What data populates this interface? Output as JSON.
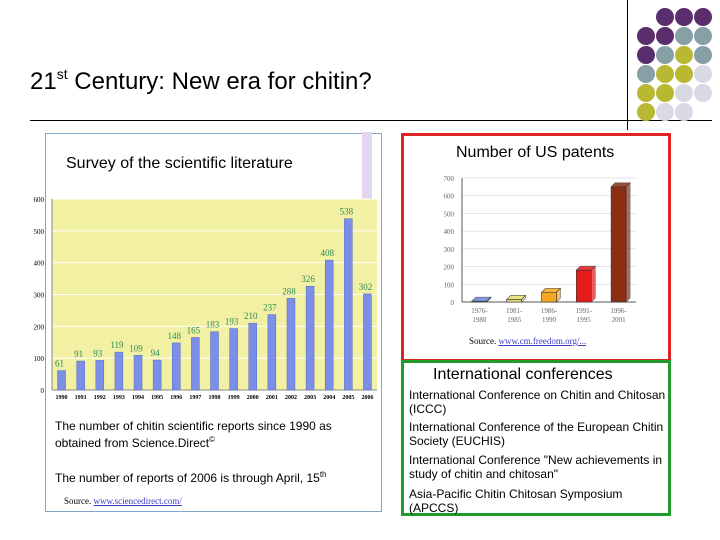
{
  "slide": {
    "title_pre": "21",
    "title_sup": "st",
    "title_post": " Century: New era for chitin?"
  },
  "decor": {
    "dot_colors": [
      "#5a2d6c",
      "#86a0a6",
      "#b8b832",
      "#d9d9e4"
    ]
  },
  "survey": {
    "title": "Survey of the scientific literature",
    "note1_pre": "The number of chitin scientific reports since 1990 as obtained from Science.Direct",
    "note1_sup": "©",
    "note2_pre": "The number of reports of 2006 is through April, 15",
    "note2_sup": "th",
    "source_label": "Source.",
    "source_link": "www.sciencedirect.com/"
  },
  "patents": {
    "title": "Number of US patents",
    "source_label": "Source.",
    "source_link": "www.cm.freedom.org/..."
  },
  "conferences": {
    "title": "International conferences",
    "items": [
      "International Conference on Chitin and Chitosan (ICCC)",
      "International Conference of the European Chitin Society (EUCHIS)",
      "International Conference \"New achievements in study of chitin and chitosan\"",
      "Asia-Pacific Chitin Chitosan Symposium (APCCS)"
    ]
  },
  "chart_data": [
    {
      "type": "bar",
      "categories": [
        "1990",
        "1991",
        "1992",
        "1993",
        "1994",
        "1995",
        "1996",
        "1997",
        "1998",
        "1999",
        "2000",
        "2001",
        "2002",
        "2003",
        "2004",
        "2005",
        "2006"
      ],
      "values": [
        61,
        91,
        93,
        119,
        109,
        94,
        148,
        165,
        183,
        193,
        210,
        237,
        288,
        326,
        408,
        538,
        302
      ],
      "ylim": [
        0,
        600
      ],
      "yticks": [
        0,
        100,
        200,
        300,
        400,
        500,
        600
      ],
      "colors": {
        "bar": "#7b8fe8",
        "plot_bg": "#f2f0a3",
        "label": "#2e8b57",
        "grid": "#ffffff"
      },
      "grid": true
    },
    {
      "type": "bar",
      "categories": [
        "1976-1980",
        "1981-1985",
        "1986-1990",
        "1991-1995",
        "1996-2001"
      ],
      "values": [
        5,
        15,
        55,
        180,
        650
      ],
      "ylim": [
        0,
        700
      ],
      "yticks": [
        0,
        100,
        200,
        300,
        400,
        500,
        600,
        700
      ],
      "colors": {
        "bars": [
          "#6f86d6",
          "#e8e07a",
          "#f5a623",
          "#e31b1b",
          "#8b2e12"
        ],
        "axis": "#555555",
        "grid": "#cccccc"
      },
      "grid": true
    }
  ]
}
